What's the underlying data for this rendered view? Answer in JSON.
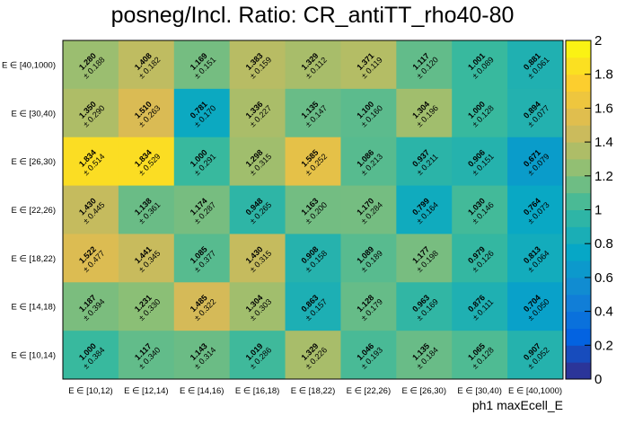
{
  "chart_data": {
    "type": "heatmap",
    "title": "posneg/Incl. Ratio: CR_antiTT_rho40-80",
    "xlabel": "ph1 maxEcell_E",
    "ylabel": "",
    "x_categories": [
      "E ∈ [10,12)",
      "E ∈ [12,14)",
      "E ∈ [14,16)",
      "E ∈ [16,18)",
      "E ∈ [18,22)",
      "E ∈ [22,26)",
      "E ∈ [26,30)",
      "E ∈ [30,40)",
      "E ∈ [40,1000)"
    ],
    "y_categories": [
      "E ∈ [40,1000)",
      "E ∈ [30,40)",
      "E ∈ [26,30)",
      "E ∈ [22,26)",
      "E ∈ [18,22)",
      "E ∈ [14,18)",
      "E ∈ [10,14)"
    ],
    "values": [
      [
        1.28,
        1.408,
        1.169,
        1.383,
        1.329,
        1.371,
        1.117,
        1.001,
        0.881
      ],
      [
        1.35,
        1.51,
        0.781,
        1.336,
        1.135,
        1.1,
        1.304,
        1.0,
        0.894
      ],
      [
        1.834,
        1.834,
        1.0,
        1.298,
        1.585,
        1.086,
        0.937,
        0.906,
        0.671
      ],
      [
        1.43,
        1.138,
        1.174,
        0.948,
        1.163,
        1.17,
        0.799,
        1.03,
        0.764
      ],
      [
        1.522,
        1.441,
        1.085,
        1.43,
        0.908,
        1.089,
        1.177,
        0.979,
        0.813
      ],
      [
        1.187,
        1.231,
        1.485,
        1.304,
        0.863,
        1.128,
        0.963,
        0.876,
        0.704
      ],
      [
        1.0,
        1.117,
        1.143,
        1.019,
        1.329,
        1.046,
        1.135,
        1.065,
        0.907
      ]
    ],
    "errors": [
      [
        0.188,
        0.182,
        0.151,
        0.159,
        0.112,
        0.119,
        0.12,
        0.089,
        0.061
      ],
      [
        0.29,
        0.263,
        0.17,
        0.227,
        0.147,
        0.16,
        0.196,
        0.128,
        0.077
      ],
      [
        0.514,
        0.529,
        0.291,
        0.315,
        0.252,
        0.213,
        0.211,
        0.151,
        0.079
      ],
      [
        0.445,
        0.361,
        0.287,
        0.265,
        0.2,
        0.284,
        0.164,
        0.146,
        0.073
      ],
      [
        0.477,
        0.345,
        0.377,
        0.315,
        0.158,
        0.189,
        0.198,
        0.126,
        0.064
      ],
      [
        0.394,
        0.33,
        0.322,
        0.303,
        0.157,
        0.179,
        0.169,
        0.111,
        0.05
      ],
      [
        0.384,
        0.34,
        0.314,
        0.286,
        0.226,
        0.193,
        0.184,
        0.128,
        0.052
      ]
    ],
    "error_prefix": "± ",
    "zlim": [
      0,
      2
    ],
    "z_ticks": [
      "0",
      "0.2",
      "0.4",
      "0.6",
      "0.8",
      "1",
      "1.2",
      "1.4",
      "1.6",
      "1.8",
      "2"
    ],
    "colormap": [
      "#352a87",
      "#0363e1",
      "#1485d4",
      "#06a7c6",
      "#38b99e",
      "#92bf73",
      "#d9ba56",
      "#fcce2e",
      "#f9fb0e"
    ]
  }
}
